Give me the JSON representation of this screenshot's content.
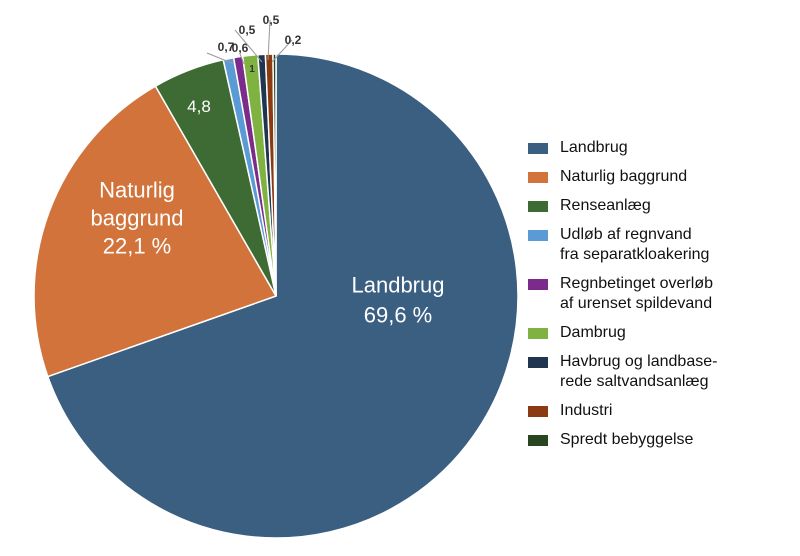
{
  "chart_data": {
    "type": "pie",
    "title": "",
    "start": "12 o'clock, clockwise",
    "slices": [
      {
        "name": "Landbrug",
        "value": 69.6,
        "color": "#3a5f80",
        "label_lines": [
          "Landbrug",
          "69,6 %"
        ],
        "label_color": "#ffffff",
        "legend": "Landbrug"
      },
      {
        "name": "Naturlig baggrund",
        "value": 22.1,
        "color": "#d2733b",
        "label_lines": [
          "Naturlig",
          "baggrund",
          "22,1 %"
        ],
        "label_color": "#ffffff",
        "legend": "Naturlig baggrund"
      },
      {
        "name": "Renseanlæg",
        "value": 4.8,
        "color": "#3d6b33",
        "label_lines": [
          "4,8"
        ],
        "label_color": "#ffffff",
        "legend": "Renseanlæg"
      },
      {
        "name": "Udløb af regnvand fra separatkloakering",
        "value": 0.7,
        "color": "#5b9bd5",
        "label_lines": [
          "0,7"
        ],
        "label_color": "#333333",
        "legend": "Udløb af regnvand\nfra separatkloakering"
      },
      {
        "name": "Regnbetinget overløb af urenset spildevand",
        "value": 0.6,
        "color": "#7b2c8a",
        "label_lines": [
          "0,6"
        ],
        "label_color": "#333333",
        "legend": "Regnbetinget overløb\naf urenset spildevand"
      },
      {
        "name": "Dambrug",
        "value": 1.0,
        "color": "#7fb241",
        "label_lines": [
          "1"
        ],
        "label_color": "#333333",
        "legend": "Dambrug"
      },
      {
        "name": "Havbrug og landbaserede saltvandsanlæg",
        "value": 0.5,
        "color": "#1f3550",
        "label_lines": [
          "0,5"
        ],
        "label_color": "#333333",
        "legend": "Havbrug og landbase-\nrede saltvandsanlæg"
      },
      {
        "name": "Industri",
        "value": 0.5,
        "color": "#8b3a12",
        "label_lines": [
          "0,5"
        ],
        "label_color": "#333333",
        "legend": "Industri"
      },
      {
        "name": "Spredt bebyggelse",
        "value": 0.2,
        "color": "#28461f",
        "label_lines": [
          "0,2"
        ],
        "label_color": "#333333",
        "legend": "Spredt bebyggelse"
      }
    ]
  }
}
